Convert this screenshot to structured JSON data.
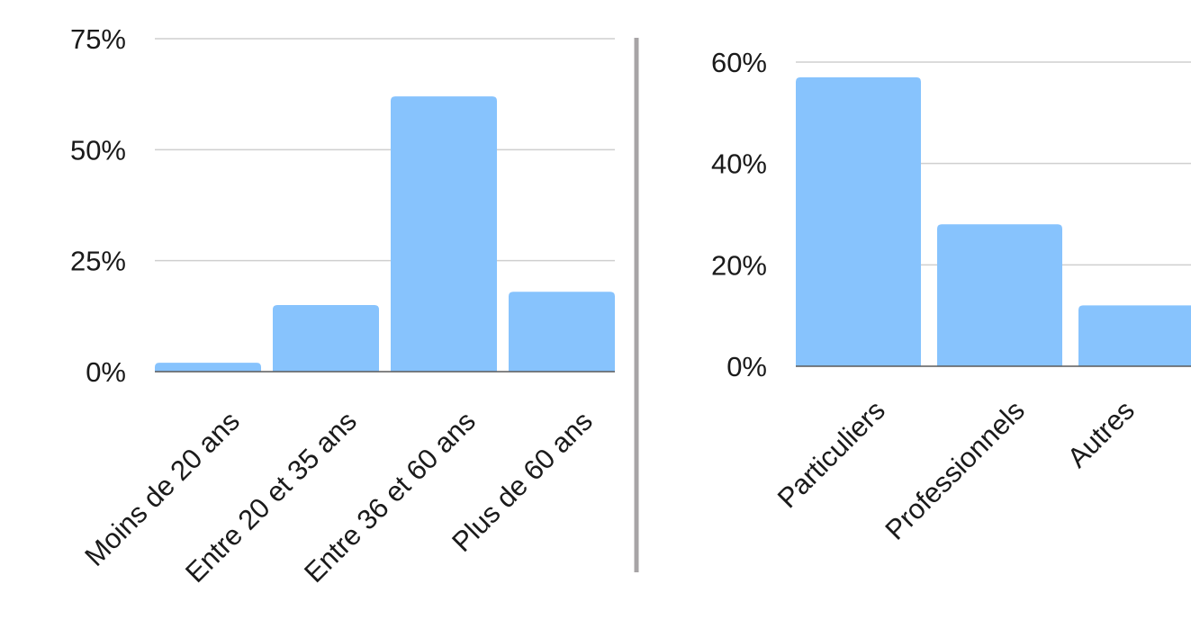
{
  "colors": {
    "bar": "#87c3fd",
    "divider": "#a7a4a6"
  },
  "chart_data": [
    {
      "type": "bar",
      "categories": [
        "Moins de 20 ans",
        "Entre 20 et 35 ans",
        "Entre 36 et 60 ans",
        "Plus de 60 ans"
      ],
      "values": [
        2,
        15,
        62,
        18
      ],
      "yticks": [
        "0%",
        "25%",
        "50%",
        "75%"
      ],
      "ytick_values": [
        0,
        25,
        50,
        75
      ],
      "ylim": [
        0,
        75
      ],
      "grid": true,
      "title": "",
      "xlabel": "",
      "ylabel": ""
    },
    {
      "type": "bar",
      "categories": [
        "Particuliers",
        "Professionnels",
        "Autres"
      ],
      "values": [
        57,
        28,
        12
      ],
      "yticks": [
        "0%",
        "20%",
        "40%",
        "60%"
      ],
      "ytick_values": [
        0,
        20,
        40,
        60
      ],
      "ylim": [
        0,
        60
      ],
      "grid": true,
      "title": "",
      "xlabel": "",
      "ylabel": ""
    }
  ]
}
